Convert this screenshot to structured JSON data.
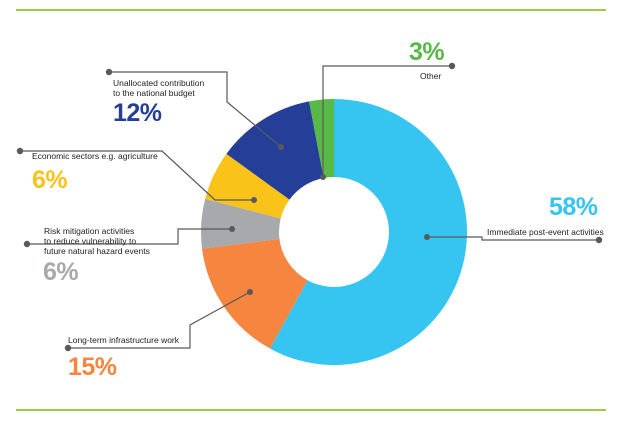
{
  "chart_data": {
    "type": "pie",
    "title": "",
    "slices": [
      {
        "label": "Immediate post-event activities",
        "value": 58,
        "pct_text": "58%",
        "color": "#36c5f0"
      },
      {
        "label": "Long-term infrastructure work",
        "value": 15,
        "pct_text": "15%",
        "color": "#f5853f"
      },
      {
        "label": "Risk mitigation activities\nto reduce vulnerability to\nfuture natural hazard events",
        "value": 6,
        "pct_text": "6%",
        "color": "#a7a9ac"
      },
      {
        "label": "Economic sectors e.g. agriculture",
        "value": 6,
        "pct_text": "6%",
        "color": "#f9c31a"
      },
      {
        "label": "Unallocated contribution\nto the national budget",
        "value": 12,
        "pct_text": "12%",
        "color": "#253f98"
      },
      {
        "label": "Other",
        "value": 3,
        "pct_text": "3%",
        "color": "#58b947"
      }
    ],
    "style": "donut",
    "rule_color": "#9ecb3c",
    "leader_color": "#58595b"
  }
}
